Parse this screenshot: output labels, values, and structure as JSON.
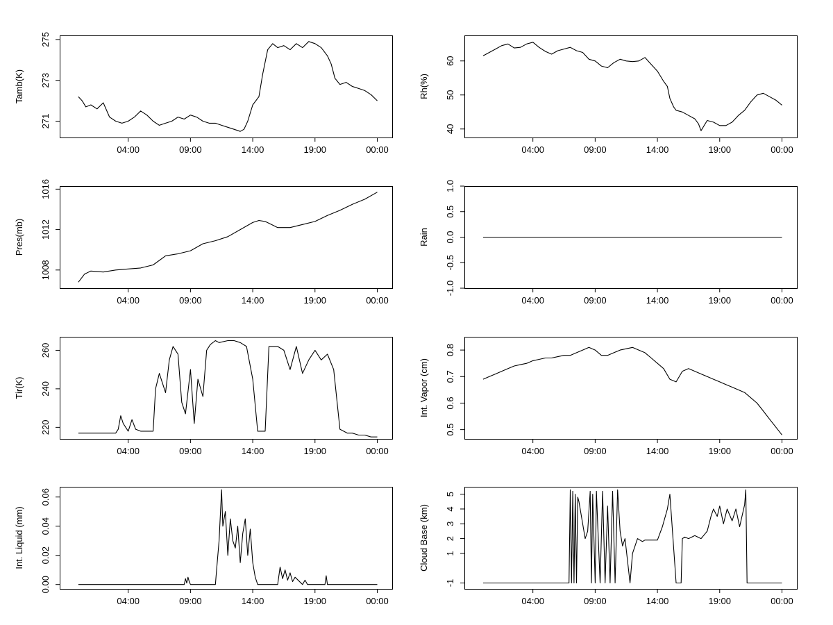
{
  "chart_data": [
    {
      "type": "line",
      "ylabel": "Tamb(K)",
      "xticks": [
        "04:00",
        "09:00",
        "14:00",
        "19:00",
        "00:00"
      ],
      "yticks": [
        "271",
        "273",
        "275"
      ],
      "ylim": [
        270.2,
        275.2
      ],
      "color": "#000000",
      "series": [
        {
          "x": [
            0,
            0.3,
            0.6,
            1,
            1.5,
            2,
            2.5,
            3,
            3.5,
            4,
            4.5,
            5,
            5.5,
            6,
            6.5,
            7,
            7.5,
            8,
            8.5,
            9,
            9.5,
            10,
            10.5,
            11,
            11.5,
            12,
            12.5,
            13,
            13.3,
            13.6,
            14,
            14.5,
            14.8,
            15.2,
            15.6,
            16,
            16.5,
            17,
            17.5,
            18,
            18.5,
            19,
            19.5,
            20,
            20.3,
            20.6,
            21,
            21.5,
            22,
            22.5,
            23,
            23.5,
            24
          ],
          "y": [
            272.2,
            272.0,
            271.7,
            271.8,
            271.6,
            271.9,
            271.2,
            271.0,
            270.9,
            271.0,
            271.2,
            271.5,
            271.3,
            271.0,
            270.8,
            270.9,
            271.0,
            271.2,
            271.1,
            271.3,
            271.2,
            271.0,
            270.9,
            270.9,
            270.8,
            270.7,
            270.6,
            270.5,
            270.6,
            271.0,
            271.8,
            272.2,
            273.3,
            274.5,
            274.8,
            274.6,
            274.7,
            274.5,
            274.8,
            274.6,
            274.9,
            274.8,
            274.6,
            274.2,
            273.8,
            273.1,
            272.8,
            272.9,
            272.7,
            272.6,
            272.5,
            272.3,
            272.0
          ]
        }
      ]
    },
    {
      "type": "line",
      "ylabel": "Rh(%)",
      "xticks": [
        "04:00",
        "09:00",
        "14:00",
        "19:00",
        "00:00"
      ],
      "yticks": [
        "40",
        "50",
        "60"
      ],
      "ylim": [
        37.5,
        67.5
      ],
      "color": "#000000",
      "series": [
        {
          "x": [
            0,
            0.5,
            1,
            1.5,
            2,
            2.5,
            3,
            3.5,
            4,
            4.5,
            5,
            5.5,
            6,
            6.5,
            7,
            7.5,
            8,
            8.5,
            9,
            9.5,
            10,
            10.5,
            11,
            11.5,
            12,
            12.5,
            13,
            13.5,
            14,
            14.5,
            14.8,
            15,
            15.3,
            15.5,
            16,
            16.5,
            17,
            17.3,
            17.5,
            18,
            18.5,
            19,
            19.5,
            20,
            20.5,
            21,
            21.5,
            22,
            22.5,
            23,
            23.5,
            24
          ],
          "y": [
            61.5,
            62.5,
            63.5,
            64.5,
            65.0,
            63.8,
            64.0,
            65.0,
            65.5,
            64.0,
            62.8,
            62.0,
            63.0,
            63.5,
            64.0,
            63.0,
            62.5,
            60.5,
            60.0,
            58.5,
            58.0,
            59.5,
            60.5,
            60.0,
            59.8,
            60.0,
            61.0,
            59.0,
            57.0,
            54.0,
            52.5,
            49.0,
            46.5,
            45.5,
            45.0,
            44.0,
            43.0,
            41.5,
            39.5,
            42.5,
            42.0,
            41.0,
            41.0,
            42.0,
            44.0,
            45.5,
            48.0,
            50.0,
            50.5,
            49.5,
            48.5,
            47.0
          ]
        }
      ]
    },
    {
      "type": "line",
      "ylabel": "Pres(mb)",
      "xticks": [
        "04:00",
        "09:00",
        "14:00",
        "19:00",
        "00:00"
      ],
      "yticks": [
        "1008",
        "1012",
        "1016"
      ],
      "ylim": [
        1006.2,
        1016.3
      ],
      "color": "#000000",
      "series": [
        {
          "x": [
            0,
            0.5,
            1,
            2,
            3,
            4,
            5,
            6,
            7,
            8,
            9,
            10,
            11,
            12,
            13,
            14,
            14.5,
            15,
            15.5,
            16,
            17,
            18,
            19,
            20,
            21,
            22,
            23,
            24
          ],
          "y": [
            1006.8,
            1007.6,
            1007.9,
            1007.8,
            1008.0,
            1008.1,
            1008.2,
            1008.5,
            1009.4,
            1009.6,
            1009.9,
            1010.6,
            1010.9,
            1011.3,
            1012.0,
            1012.7,
            1012.9,
            1012.8,
            1012.5,
            1012.2,
            1012.2,
            1012.5,
            1012.8,
            1013.4,
            1013.9,
            1014.5,
            1015.0,
            1015.7
          ]
        }
      ]
    },
    {
      "type": "line",
      "ylabel": "Rain",
      "xticks": [
        "04:00",
        "09:00",
        "14:00",
        "19:00",
        "00:00"
      ],
      "yticks": [
        "-1.0",
        "-0.5",
        "0.0",
        "0.5",
        "1.0"
      ],
      "ylim": [
        -1.0,
        1.0
      ],
      "color": "#000000",
      "series": [
        {
          "x": [
            0,
            24
          ],
          "y": [
            0,
            0
          ]
        }
      ]
    },
    {
      "type": "line",
      "ylabel": "Tir(K)",
      "xticks": [
        "04:00",
        "09:00",
        "14:00",
        "19:00",
        "00:00"
      ],
      "yticks": [
        "220",
        "240",
        "260"
      ],
      "ylim": [
        214,
        267
      ],
      "color": "#000000",
      "series": [
        {
          "x": [
            0,
            1,
            2,
            3,
            3.2,
            3.4,
            3.6,
            4,
            4.3,
            4.6,
            5,
            5.5,
            6,
            6.2,
            6.5,
            6.8,
            7,
            7.3,
            7.6,
            8,
            8.3,
            8.6,
            9,
            9.3,
            9.6,
            10,
            10.3,
            10.6,
            11,
            11.3,
            12,
            12.5,
            13,
            13.5,
            14,
            14.4,
            14.8,
            15,
            15.3,
            15.6,
            16,
            16.5,
            17,
            17.5,
            18,
            18.5,
            19,
            19.5,
            20,
            20.5,
            21,
            21.3,
            21.6,
            22,
            22.5,
            23,
            23.5,
            24
          ],
          "y": [
            217,
            217,
            217,
            217,
            219,
            226,
            222,
            218,
            224,
            219,
            218,
            218,
            218,
            240,
            248,
            242,
            238,
            255,
            262,
            258,
            233,
            227,
            250,
            222,
            245,
            236,
            260,
            263,
            265,
            264,
            265,
            265,
            264,
            262,
            245,
            218,
            218,
            218,
            262,
            262,
            262,
            260,
            250,
            262,
            248,
            255,
            260,
            255,
            258,
            250,
            219,
            218,
            217,
            217,
            216,
            216,
            215,
            215
          ]
        }
      ]
    },
    {
      "type": "line",
      "ylabel": "Int. Vapor (cm)",
      "xticks": [
        "04:00",
        "09:00",
        "14:00",
        "19:00",
        "00:00"
      ],
      "yticks": [
        "0.5",
        "0.6",
        "0.7",
        "0.8"
      ],
      "ylim": [
        0.465,
        0.85
      ],
      "color": "#000000",
      "series": [
        {
          "x": [
            0,
            0.5,
            1,
            1.5,
            2,
            2.5,
            3,
            3.5,
            4,
            4.5,
            5,
            5.5,
            6,
            6.5,
            7,
            7.5,
            8,
            8.5,
            9,
            9.5,
            10,
            10.5,
            11,
            11.5,
            12,
            12.5,
            13,
            13.5,
            14,
            14.5,
            15,
            15.5,
            16,
            16.5,
            17,
            17.5,
            18,
            18.5,
            19,
            19.5,
            20,
            20.5,
            21,
            21.5,
            22,
            22.5,
            23,
            23.5,
            24
          ],
          "y": [
            0.69,
            0.7,
            0.71,
            0.72,
            0.73,
            0.74,
            0.745,
            0.75,
            0.76,
            0.765,
            0.77,
            0.77,
            0.775,
            0.78,
            0.78,
            0.79,
            0.8,
            0.81,
            0.8,
            0.78,
            0.78,
            0.79,
            0.8,
            0.805,
            0.81,
            0.8,
            0.79,
            0.77,
            0.75,
            0.73,
            0.69,
            0.68,
            0.72,
            0.73,
            0.72,
            0.71,
            0.7,
            0.69,
            0.68,
            0.67,
            0.66,
            0.65,
            0.64,
            0.62,
            0.6,
            0.57,
            0.54,
            0.51,
            0.48
          ]
        }
      ]
    },
    {
      "type": "line",
      "ylabel": "Int. Liquid (mm)",
      "xticks": [
        "04:00",
        "09:00",
        "14:00",
        "19:00",
        "00:00"
      ],
      "yticks": [
        "0.00",
        "0.02",
        "0.04",
        "0.06"
      ],
      "ylim": [
        -0.003,
        0.067
      ],
      "color": "#000000",
      "series": [
        {
          "x": [
            0,
            8.5,
            8.6,
            8.7,
            8.8,
            8.9,
            9.0,
            11.0,
            11.1,
            11.3,
            11.5,
            11.6,
            11.8,
            12.0,
            12.2,
            12.4,
            12.6,
            12.8,
            13.0,
            13.2,
            13.4,
            13.6,
            13.8,
            14.0,
            14.2,
            14.4,
            16.0,
            16.2,
            16.4,
            16.6,
            16.8,
            17.0,
            17.2,
            17.4,
            18.0,
            18.2,
            18.4,
            19.8,
            19.9,
            20.0,
            24
          ],
          "y": [
            0,
            0,
            0.004,
            0.001,
            0.005,
            0.002,
            0,
            0,
            0.01,
            0.03,
            0.065,
            0.04,
            0.05,
            0.02,
            0.045,
            0.03,
            0.025,
            0.04,
            0.015,
            0.035,
            0.045,
            0.02,
            0.038,
            0.015,
            0.005,
            0,
            0,
            0.012,
            0.004,
            0.01,
            0.003,
            0.008,
            0.002,
            0.005,
            0,
            0.003,
            0,
            0,
            0.006,
            0,
            0
          ]
        }
      ]
    },
    {
      "type": "line",
      "ylabel": "Cloud Base (km)",
      "xticks": [
        "04:00",
        "09:00",
        "14:00",
        "19:00",
        "00:00"
      ],
      "yticks": [
        "-1",
        "1",
        "2",
        "3",
        "4",
        "5"
      ],
      "ylim": [
        -1.4,
        5.5
      ],
      "color": "#000000",
      "series": [
        {
          "x": [
            0,
            6.9,
            7.0,
            7.1,
            7.2,
            7.3,
            7.4,
            7.5,
            7.6,
            7.7,
            7.8,
            8.0,
            8.2,
            8.4,
            8.6,
            8.7,
            8.8,
            9.0,
            9.1,
            9.2,
            9.4,
            9.6,
            9.8,
            10.0,
            10.2,
            10.4,
            10.6,
            10.8,
            11.0,
            11.2,
            11.4,
            11.8,
            12.0,
            12.4,
            12.8,
            13.0,
            13.4,
            13.8,
            14.0,
            14.4,
            14.8,
            15.0,
            15.5,
            15.9,
            16.0,
            16.2,
            16.5,
            17.0,
            17.5,
            18.0,
            18.3,
            18.5,
            18.8,
            19.0,
            19.3,
            19.6,
            20.0,
            20.3,
            20.6,
            21.0,
            21.1,
            21.2,
            24
          ],
          "y": [
            -1,
            -1,
            5.3,
            -1,
            5.2,
            -1,
            5.0,
            -1,
            4.8,
            4.5,
            4.0,
            3.0,
            2.0,
            2.5,
            5.2,
            -1,
            5.0,
            -1,
            5.2,
            3.0,
            -1,
            5.2,
            -1,
            4.2,
            -1,
            5.2,
            -1,
            5.3,
            2.5,
            1.5,
            2.0,
            -1,
            1.0,
            2.0,
            1.8,
            1.9,
            1.9,
            1.9,
            1.9,
            2.8,
            4.0,
            5.0,
            -1,
            -1,
            2.0,
            2.1,
            2.0,
            2.2,
            2.0,
            2.5,
            3.5,
            4.0,
            3.5,
            4.2,
            3.0,
            4.0,
            3.2,
            4.0,
            2.8,
            4.3,
            5.3,
            -1,
            -1
          ]
        }
      ]
    }
  ]
}
